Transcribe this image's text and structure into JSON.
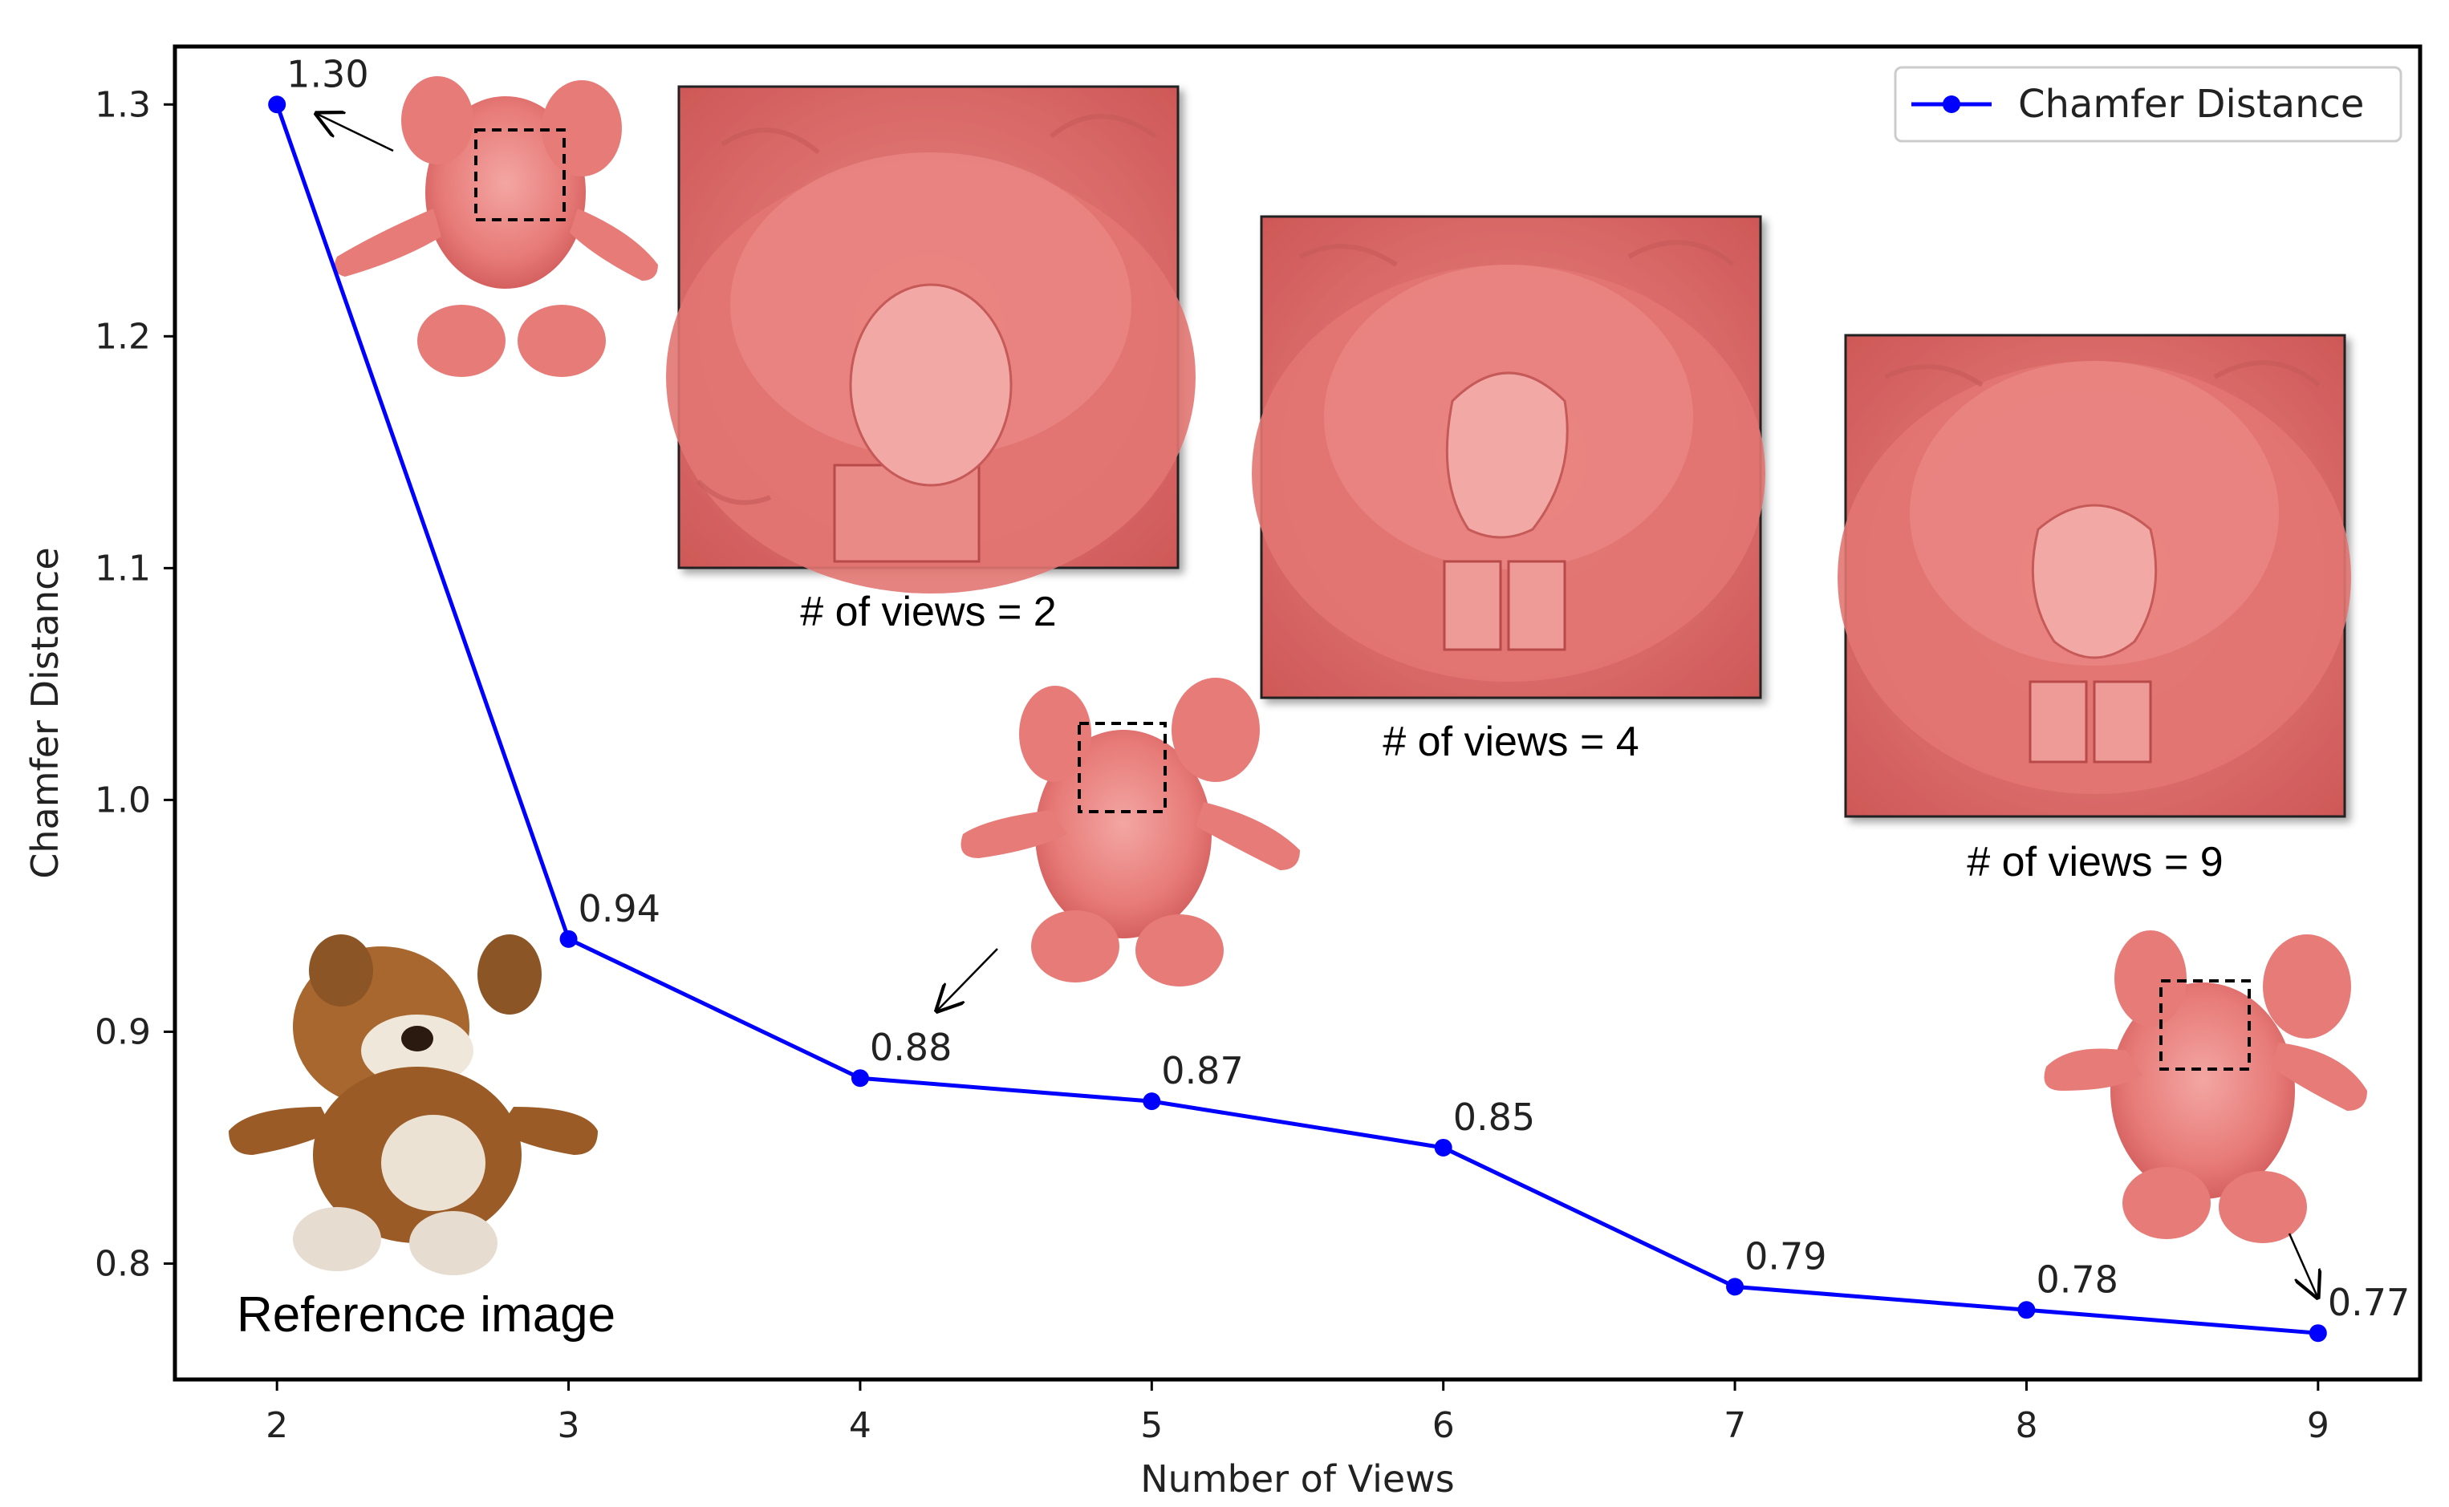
{
  "chart_data": {
    "type": "line",
    "xlabel": "Number of Views",
    "ylabel": "Chamfer Distance",
    "x": [
      2,
      3,
      4,
      5,
      6,
      7,
      8,
      9
    ],
    "xlim": [
      1.65,
      9.35
    ],
    "ylim": [
      0.75,
      1.325
    ],
    "x_ticks": [
      "2",
      "3",
      "4",
      "5",
      "6",
      "7",
      "8",
      "9"
    ],
    "y_ticks": [
      "0.8",
      "0.9",
      "1.0",
      "1.1",
      "1.2",
      "1.3"
    ],
    "series": [
      {
        "name": "Chamfer Distance",
        "values": [
          1.3,
          0.94,
          0.88,
          0.87,
          0.85,
          0.79,
          0.78,
          0.77
        ],
        "labels": [
          "1.30",
          "0.94",
          "0.88",
          "0.87",
          "0.85",
          "0.79",
          "0.78",
          "0.77"
        ],
        "color": "#0000ff"
      }
    ],
    "grid": false,
    "legend_position": "top-right"
  },
  "insets": {
    "captions": [
      "# of views = 2",
      "# of views = 4",
      "# of views = 9"
    ],
    "reference_caption": "Reference image"
  },
  "colors": {
    "line": "#0000ff",
    "render": "#e8706e",
    "render_light": "#f19a97",
    "render_dark": "#c94f4f",
    "bear_brown": "#a0622f",
    "bear_light": "#e9e0d2"
  }
}
